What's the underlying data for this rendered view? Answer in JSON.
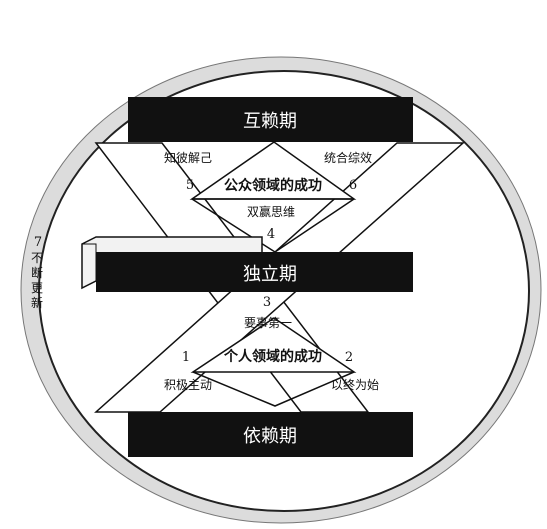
{
  "diagram": {
    "bars": {
      "top": "互赖期",
      "middle": "独立期",
      "bottom": "依赖期"
    },
    "upper": {
      "title": "公众领域的成功",
      "left_label": "知彼解己",
      "left_number": "5",
      "right_label": "统合综效",
      "right_number": "6",
      "bottom_label": "双赢思维",
      "bottom_number": "4"
    },
    "lower": {
      "title": "个人领域的成功",
      "top_number": "3",
      "top_label": "要事第一",
      "left_number": "1",
      "left_label": "积极主动",
      "right_number": "2",
      "right_label": "以终为始"
    },
    "side": {
      "number": "7",
      "chars": [
        "不",
        "断",
        "更",
        "新"
      ]
    }
  }
}
